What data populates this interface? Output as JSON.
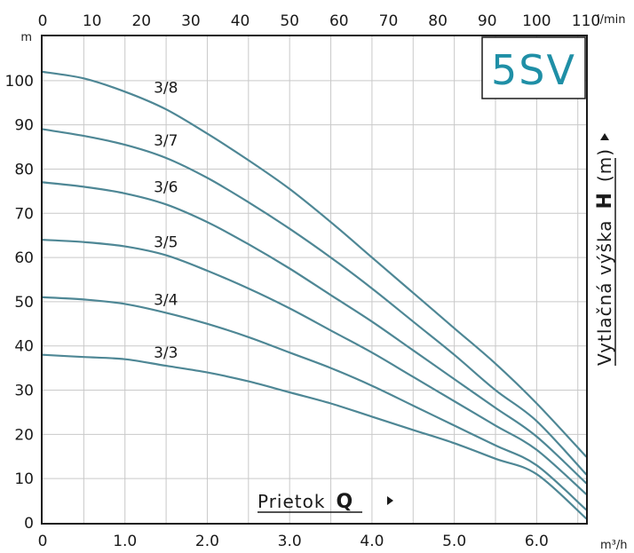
{
  "chart_data": {
    "type": "line",
    "logo": "5SV",
    "colors": {
      "curve": "#4e8795",
      "logo": "#1f8fa6"
    },
    "x_axis_bottom": {
      "unit_label": "m³/h",
      "range": [
        0,
        6.6
      ],
      "ticks": [
        0,
        1,
        2,
        3,
        4,
        5,
        6
      ],
      "tick_labels": [
        "0",
        "1.0",
        "2.0",
        "3.0",
        "4.0",
        "5.0",
        "6.0"
      ]
    },
    "x_axis_top": {
      "unit_label": "l/min",
      "range": [
        0,
        110
      ],
      "ticks": [
        0,
        10,
        20,
        30,
        40,
        50,
        60,
        70,
        80,
        90,
        100,
        110
      ],
      "tick_labels": [
        "0",
        "10",
        "20",
        "30",
        "40",
        "50",
        "60",
        "70",
        "80",
        "90",
        "100",
        "110"
      ]
    },
    "y_axis": {
      "unit_label": "m",
      "range": [
        0,
        110
      ],
      "ticks": [
        0,
        10,
        20,
        30,
        40,
        50,
        60,
        70,
        80,
        90,
        100
      ],
      "tick_labels": [
        "0",
        "10",
        "20",
        "30",
        "40",
        "50",
        "60",
        "70",
        "80",
        "90",
        "100"
      ]
    },
    "xlabel": {
      "text": "Prietok",
      "bold": "Q"
    },
    "ylabel": {
      "text": "Vytlačná výška",
      "bold": "H",
      "unit": "(m)"
    },
    "grid": true,
    "series": [
      {
        "name": "3/8",
        "label_at": [
          1.5,
          98.5
        ],
        "x": [
          0,
          0.5,
          1.0,
          1.5,
          2.0,
          2.5,
          3.0,
          3.5,
          4.0,
          4.5,
          5.0,
          5.5,
          6.0,
          6.6
        ],
        "y": [
          102,
          100.5,
          97.5,
          93.5,
          88,
          82,
          75.5,
          68,
          60,
          52,
          44,
          36,
          27,
          15
        ]
      },
      {
        "name": "3/7",
        "label_at": [
          1.5,
          86.5
        ],
        "x": [
          0,
          0.5,
          1.0,
          1.5,
          2.0,
          2.5,
          3.0,
          3.5,
          4.0,
          4.5,
          5.0,
          5.5,
          6.0,
          6.6
        ],
        "y": [
          89,
          87.5,
          85.5,
          82.5,
          78,
          72.5,
          66.5,
          60,
          53,
          45.5,
          38,
          30,
          23,
          11
        ]
      },
      {
        "name": "3/6",
        "label_at": [
          1.5,
          76
        ],
        "x": [
          0,
          0.5,
          1.0,
          1.5,
          2.0,
          2.5,
          3.0,
          3.5,
          4.0,
          4.5,
          5.0,
          5.5,
          6.0,
          6.6
        ],
        "y": [
          77,
          76,
          74.5,
          72,
          68,
          63,
          57.5,
          51.5,
          45.5,
          39,
          32.5,
          26,
          19.5,
          9
        ]
      },
      {
        "name": "3/5",
        "label_at": [
          1.5,
          63.5
        ],
        "x": [
          0,
          0.5,
          1.0,
          1.5,
          2.0,
          2.5,
          3.0,
          3.5,
          4.0,
          4.5,
          5.0,
          5.5,
          6.0,
          6.6
        ],
        "y": [
          64,
          63.5,
          62.5,
          60.5,
          57,
          53,
          48.5,
          43.5,
          38.5,
          33,
          27.5,
          22,
          16.5,
          6.5
        ]
      },
      {
        "name": "3/4",
        "label_at": [
          1.5,
          50.5
        ],
        "x": [
          0,
          0.5,
          1.0,
          1.5,
          2.0,
          2.5,
          3.0,
          3.5,
          4.0,
          4.5,
          5.0,
          5.5,
          6.0,
          6.6
        ],
        "y": [
          51,
          50.5,
          49.5,
          47.5,
          45,
          42,
          38.5,
          35,
          31,
          26.5,
          22,
          17.5,
          13,
          3
        ]
      },
      {
        "name": "3/3",
        "label_at": [
          1.5,
          38.5
        ],
        "x": [
          0,
          0.5,
          1.0,
          1.5,
          2.0,
          2.5,
          3.0,
          3.5,
          4.0,
          4.5,
          5.0,
          5.5,
          6.0,
          6.6
        ],
        "y": [
          38,
          37.5,
          37,
          35.5,
          34,
          32,
          29.5,
          27,
          24,
          21,
          18,
          14.5,
          11,
          1
        ]
      }
    ]
  }
}
